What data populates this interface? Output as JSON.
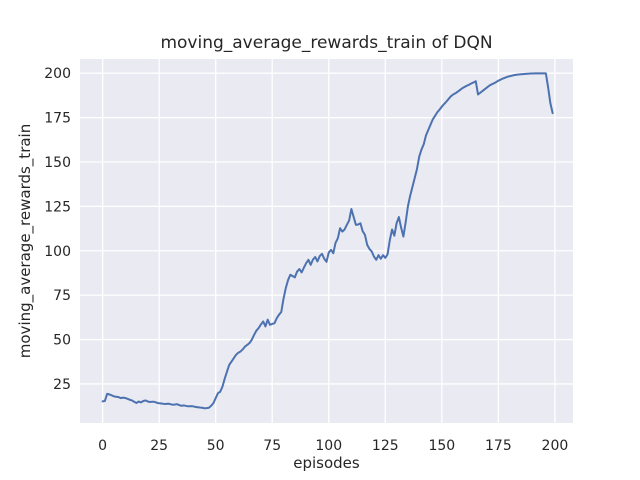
{
  "figure": {
    "kind": "matplotlib-seaborn-figure",
    "background_color": "#ffffff"
  },
  "chart_data": {
    "type": "line",
    "title": "moving_average_rewards_train of DQN",
    "xlabel": "episodes",
    "ylabel": "moving_average_rewards_train",
    "xlim": [
      -10,
      208
    ],
    "ylim": [
      3,
      208
    ],
    "x_ticks": [
      0,
      25,
      50,
      75,
      100,
      125,
      150,
      175,
      200
    ],
    "y_ticks": [
      25,
      50,
      75,
      100,
      125,
      150,
      175,
      200
    ],
    "grid": true,
    "legend": "none",
    "style": "seaborn-darkgrid",
    "axes_background_color": "#eaeaf2",
    "grid_color": "#ffffff",
    "text_color": "#262626",
    "series": [
      {
        "name": "moving_average_rewards_train",
        "color": "#4c72b0",
        "line_width": 2,
        "points": [
          [
            0,
            15.2
          ],
          [
            1,
            15.4
          ],
          [
            2,
            19.4
          ],
          [
            3,
            19.1
          ],
          [
            4,
            18.6
          ],
          [
            5,
            18.0
          ],
          [
            6,
            17.8
          ],
          [
            7,
            17.6
          ],
          [
            8,
            17.0
          ],
          [
            9,
            17.3
          ],
          [
            10,
            17.1
          ],
          [
            11,
            16.6
          ],
          [
            12,
            16.1
          ],
          [
            13,
            15.7
          ],
          [
            14,
            14.9
          ],
          [
            15,
            14.3
          ],
          [
            16,
            15.1
          ],
          [
            17,
            14.6
          ],
          [
            18,
            15.4
          ],
          [
            19,
            15.7
          ],
          [
            20,
            15.1
          ],
          [
            21,
            14.8
          ],
          [
            22,
            15.0
          ],
          [
            23,
            14.9
          ],
          [
            24,
            14.4
          ],
          [
            25,
            14.1
          ],
          [
            26,
            14.0
          ],
          [
            27,
            13.8
          ],
          [
            28,
            13.7
          ],
          [
            29,
            13.9
          ],
          [
            30,
            13.6
          ],
          [
            31,
            13.3
          ],
          [
            32,
            13.4
          ],
          [
            33,
            13.6
          ],
          [
            34,
            13.0
          ],
          [
            35,
            12.7
          ],
          [
            36,
            12.9
          ],
          [
            37,
            12.6
          ],
          [
            38,
            12.4
          ],
          [
            39,
            12.5
          ],
          [
            40,
            12.4
          ],
          [
            41,
            12.1
          ],
          [
            42,
            11.9
          ],
          [
            43,
            11.7
          ],
          [
            44,
            11.6
          ],
          [
            45,
            11.3
          ],
          [
            46,
            11.4
          ],
          [
            47,
            11.6
          ],
          [
            48,
            12.7
          ],
          [
            49,
            14.2
          ],
          [
            50,
            17.0
          ],
          [
            51,
            19.8
          ],
          [
            52,
            20.6
          ],
          [
            53,
            23.5
          ],
          [
            54,
            28.0
          ],
          [
            55,
            32.0
          ],
          [
            56,
            35.8
          ],
          [
            57,
            37.6
          ],
          [
            58,
            39.5
          ],
          [
            59,
            41.4
          ],
          [
            60,
            42.6
          ],
          [
            61,
            43.3
          ],
          [
            62,
            44.5
          ],
          [
            63,
            46.1
          ],
          [
            64,
            47.0
          ],
          [
            65,
            48.1
          ],
          [
            66,
            50.0
          ],
          [
            67,
            52.7
          ],
          [
            68,
            55.0
          ],
          [
            69,
            56.5
          ],
          [
            70,
            58.5
          ],
          [
            71,
            60.2
          ],
          [
            72,
            57.4
          ],
          [
            73,
            61.2
          ],
          [
            74,
            58.3
          ],
          [
            75,
            58.8
          ],
          [
            76,
            59.2
          ],
          [
            77,
            62.0
          ],
          [
            78,
            64.0
          ],
          [
            79,
            65.5
          ],
          [
            80,
            73.0
          ],
          [
            81,
            79.0
          ],
          [
            82,
            83.5
          ],
          [
            83,
            86.5
          ],
          [
            84,
            85.8
          ],
          [
            85,
            85.0
          ],
          [
            86,
            88.3
          ],
          [
            87,
            89.7
          ],
          [
            88,
            87.8
          ],
          [
            89,
            90.5
          ],
          [
            90,
            93.0
          ],
          [
            91,
            94.9
          ],
          [
            92,
            92.1
          ],
          [
            93,
            95.0
          ],
          [
            94,
            96.5
          ],
          [
            95,
            94.0
          ],
          [
            96,
            97.0
          ],
          [
            97,
            98.3
          ],
          [
            98,
            95.5
          ],
          [
            99,
            93.8
          ],
          [
            100,
            99.0
          ],
          [
            101,
            100.5
          ],
          [
            102,
            98.6
          ],
          [
            103,
            104.5
          ],
          [
            104,
            107.0
          ],
          [
            105,
            112.7
          ],
          [
            106,
            110.8
          ],
          [
            107,
            112.0
          ],
          [
            108,
            114.6
          ],
          [
            109,
            117.0
          ],
          [
            110,
            123.5
          ],
          [
            111,
            119.0
          ],
          [
            112,
            114.6
          ],
          [
            113,
            114.8
          ],
          [
            114,
            115.5
          ],
          [
            115,
            111.0
          ],
          [
            116,
            109.0
          ],
          [
            117,
            103.3
          ],
          [
            118,
            101.0
          ],
          [
            119,
            99.6
          ],
          [
            120,
            96.7
          ],
          [
            121,
            94.9
          ],
          [
            122,
            97.5
          ],
          [
            123,
            95.5
          ],
          [
            124,
            97.5
          ],
          [
            125,
            96.0
          ],
          [
            126,
            98.0
          ],
          [
            127,
            106.0
          ],
          [
            128,
            112.0
          ],
          [
            129,
            108.5
          ],
          [
            130,
            115.5
          ],
          [
            131,
            119.0
          ],
          [
            132,
            113.0
          ],
          [
            133,
            108.0
          ],
          [
            134,
            116.0
          ],
          [
            135,
            125.0
          ],
          [
            136,
            131.0
          ],
          [
            137,
            136.0
          ],
          [
            138,
            141.0
          ],
          [
            139,
            146.0
          ],
          [
            140,
            153.0
          ],
          [
            141,
            157.0
          ],
          [
            142,
            160.0
          ],
          [
            143,
            165.0
          ],
          [
            144,
            168.0
          ],
          [
            145,
            171.0
          ],
          [
            146,
            174.0
          ],
          [
            147,
            176.0
          ],
          [
            148,
            178.0
          ],
          [
            149,
            179.5
          ],
          [
            150,
            181.2
          ],
          [
            151,
            182.6
          ],
          [
            152,
            184.0
          ],
          [
            153,
            185.5
          ],
          [
            154,
            187.0
          ],
          [
            155,
            188.0
          ],
          [
            156,
            188.7
          ],
          [
            157,
            189.6
          ],
          [
            158,
            190.5
          ],
          [
            159,
            191.5
          ],
          [
            160,
            192.2
          ],
          [
            161,
            192.9
          ],
          [
            162,
            193.5
          ],
          [
            163,
            194.2
          ],
          [
            164,
            194.8
          ],
          [
            165,
            195.5
          ],
          [
            166,
            188.0
          ],
          [
            167,
            189.0
          ],
          [
            168,
            190.0
          ],
          [
            169,
            191.0
          ],
          [
            170,
            192.0
          ],
          [
            171,
            193.0
          ],
          [
            172,
            193.7
          ],
          [
            173,
            194.3
          ],
          [
            174,
            195.0
          ],
          [
            175,
            195.8
          ],
          [
            176,
            196.4
          ],
          [
            177,
            197.0
          ],
          [
            178,
            197.5
          ],
          [
            179,
            198.0
          ],
          [
            180,
            198.3
          ],
          [
            181,
            198.6
          ],
          [
            182,
            198.9
          ],
          [
            183,
            199.1
          ],
          [
            184,
            199.3
          ],
          [
            185,
            199.4
          ],
          [
            186,
            199.5
          ],
          [
            187,
            199.6
          ],
          [
            188,
            199.7
          ],
          [
            189,
            199.8
          ],
          [
            190,
            199.8
          ],
          [
            191,
            199.9
          ],
          [
            192,
            199.9
          ],
          [
            193,
            199.9
          ],
          [
            194,
            199.9
          ],
          [
            195,
            199.9
          ],
          [
            196,
            199.9
          ],
          [
            197,
            192.0
          ],
          [
            198,
            183.0
          ],
          [
            199,
            177.5
          ]
        ]
      }
    ]
  }
}
